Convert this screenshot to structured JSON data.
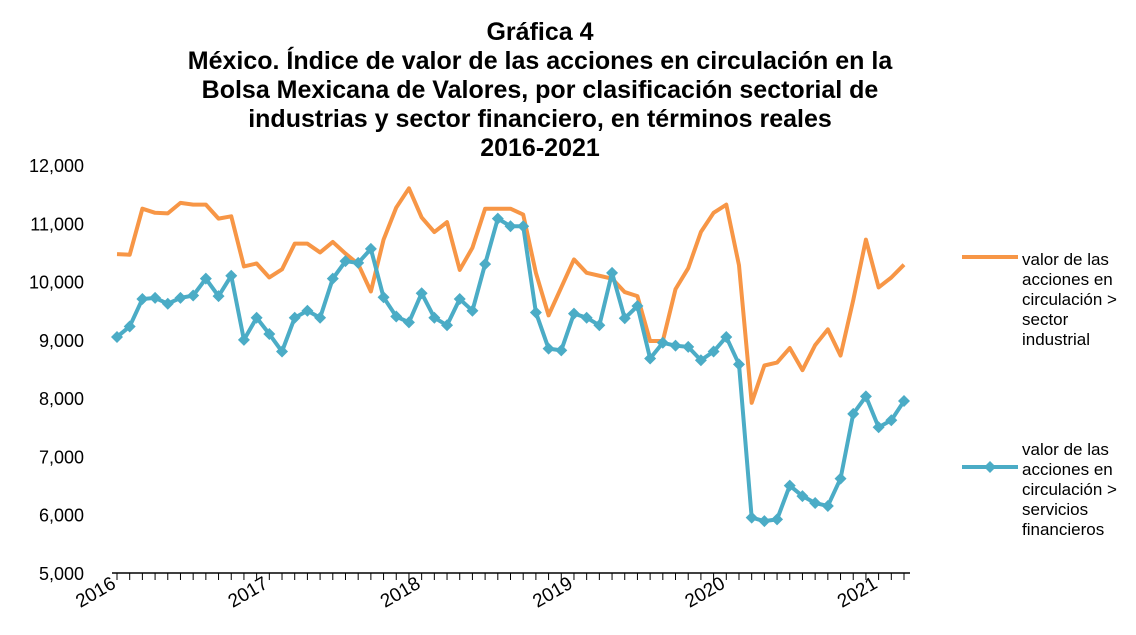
{
  "chart_data": {
    "type": "line",
    "title": [
      "Gráfica 4",
      "México. Índice de valor de las acciones en circulación en la",
      "Bolsa Mexicana de Valores, por clasificación sectorial de",
      "industrias y sector financiero, en términos reales",
      "2016-2021"
    ],
    "categories": [
      "2016",
      null,
      null,
      null,
      null,
      null,
      null,
      null,
      null,
      null,
      null,
      null,
      "2017",
      null,
      null,
      null,
      null,
      null,
      null,
      null,
      null,
      null,
      null,
      null,
      "2018",
      null,
      null,
      null,
      null,
      null,
      null,
      null,
      null,
      null,
      null,
      null,
      "2019",
      null,
      null,
      null,
      null,
      null,
      null,
      null,
      null,
      null,
      null,
      null,
      "2020",
      null,
      null,
      null,
      null,
      null,
      null,
      null,
      null,
      null,
      null,
      null,
      "2021",
      null,
      null
    ],
    "series": [
      {
        "name": "valor de las acciones en circulación > sector industrial",
        "color": "#f79646",
        "marker": false,
        "values": [
          10470,
          10460,
          11250,
          11180,
          11170,
          11350,
          11320,
          11320,
          11080,
          11120,
          10260,
          10310,
          10070,
          10210,
          10650,
          10650,
          10500,
          10680,
          10480,
          10300,
          9830,
          10720,
          11270,
          11600,
          11100,
          10850,
          11020,
          10200,
          10580,
          11250,
          11250,
          11250,
          11150,
          10150,
          9420,
          9900,
          10380,
          10150,
          10100,
          10050,
          9820,
          9750,
          8980,
          8980,
          9870,
          10230,
          10850,
          11180,
          11320,
          10280,
          7920,
          8560,
          8610,
          8860,
          8480,
          8910,
          9180,
          8730,
          9680,
          10720,
          9900,
          10070,
          10290
        ]
      },
      {
        "name": "valor de las acciones en circulación > servicios financieros",
        "color": "#4bacc6",
        "marker": true,
        "values": [
          9050,
          9230,
          9700,
          9720,
          9620,
          9720,
          9760,
          10050,
          9750,
          10100,
          9000,
          9380,
          9100,
          8800,
          9380,
          9500,
          9380,
          10050,
          10350,
          10320,
          10560,
          9730,
          9400,
          9300,
          9800,
          9380,
          9250,
          9700,
          9500,
          10300,
          11080,
          10950,
          10950,
          9470,
          8850,
          8820,
          9450,
          9380,
          9250,
          10150,
          9370,
          9580,
          8680,
          8950,
          8900,
          8880,
          8650,
          8800,
          9050,
          8580,
          5950,
          5890,
          5920,
          6500,
          6320,
          6200,
          6150,
          6620,
          7730,
          8030,
          7500,
          7620,
          7950
        ]
      }
    ],
    "ylim": [
      5000,
      12000
    ],
    "yticks": [
      {
        "value": 5000,
        "label": "5,000"
      },
      {
        "value": 6000,
        "label": "6,000"
      },
      {
        "value": 7000,
        "label": "7,000"
      },
      {
        "value": 8000,
        "label": "8,000"
      },
      {
        "value": 9000,
        "label": "9,000"
      },
      {
        "value": 10000,
        "label": "10,000"
      },
      {
        "value": 11000,
        "label": "11,000"
      },
      {
        "value": 12000,
        "label": "12,000"
      }
    ],
    "grid": false
  }
}
